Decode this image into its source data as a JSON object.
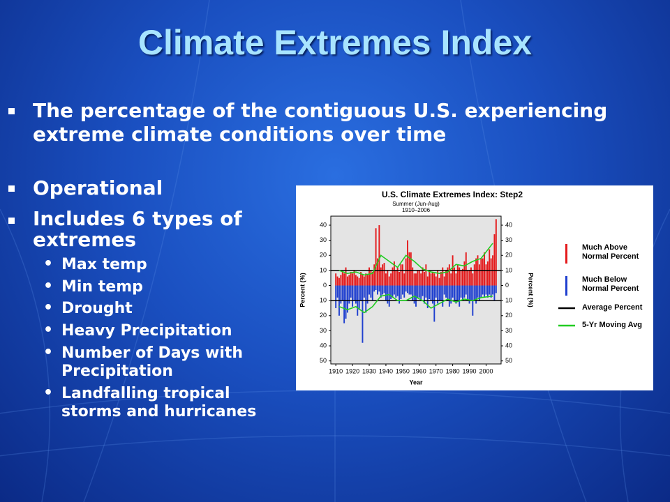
{
  "title": "Climate Extremes Index",
  "bullets": [
    {
      "text": "The percentage of the contiguous U.S. experiencing extreme climate conditions over time"
    },
    {
      "text": "Operational"
    },
    {
      "text": "Includes 6 types of extremes",
      "subitems": [
        "Max temp",
        "Min temp",
        "Drought",
        "Heavy Precipitation",
        "Number of Days with Precipitation",
        "Landfalling tropical storms and hurricanes"
      ]
    }
  ],
  "chart_data": {
    "type": "bar",
    "title": "U.S. Climate Extremes Index: Step2",
    "subtitle": "Summer (Jun-Aug)",
    "period": "1910–2006",
    "x_label": "Year",
    "y_label": "Percent (%)",
    "y2_label": "Percent (%)",
    "x": [
      1910,
      1911,
      1912,
      1913,
      1914,
      1915,
      1916,
      1917,
      1918,
      1919,
      1920,
      1921,
      1922,
      1923,
      1924,
      1925,
      1926,
      1927,
      1928,
      1929,
      1930,
      1931,
      1932,
      1933,
      1934,
      1935,
      1936,
      1937,
      1938,
      1939,
      1940,
      1941,
      1942,
      1943,
      1944,
      1945,
      1946,
      1947,
      1948,
      1949,
      1950,
      1951,
      1952,
      1953,
      1954,
      1955,
      1956,
      1957,
      1958,
      1959,
      1960,
      1961,
      1962,
      1963,
      1964,
      1965,
      1966,
      1967,
      1968,
      1969,
      1970,
      1971,
      1972,
      1973,
      1974,
      1975,
      1976,
      1977,
      1978,
      1979,
      1980,
      1981,
      1982,
      1983,
      1984,
      1985,
      1986,
      1987,
      1988,
      1989,
      1990,
      1991,
      1992,
      1993,
      1994,
      1995,
      1996,
      1997,
      1998,
      1999,
      2000,
      2001,
      2002,
      2003,
      2004,
      2005,
      2006
    ],
    "series": [
      {
        "name": "Much Above Normal Percent",
        "color": "#e41a1c",
        "values": [
          8,
          6,
          5,
          7,
          9,
          8,
          12,
          6,
          7,
          9,
          8,
          10,
          7,
          6,
          5,
          9,
          7,
          6,
          8,
          7,
          12,
          10,
          9,
          14,
          38,
          18,
          40,
          12,
          14,
          15,
          8,
          10,
          6,
          8,
          12,
          16,
          10,
          12,
          9,
          14,
          14,
          8,
          18,
          30,
          22,
          22,
          12,
          8,
          8,
          10,
          10,
          8,
          12,
          9,
          14,
          6,
          10,
          8,
          9,
          8,
          6,
          10,
          5,
          9,
          12,
          6,
          10,
          12,
          14,
          8,
          20,
          12,
          8,
          14,
          12,
          10,
          11,
          16,
          22,
          10,
          10,
          12,
          8,
          14,
          18,
          20,
          14,
          18,
          18,
          22,
          14,
          16,
          24,
          18,
          20,
          34,
          44
        ]
      },
      {
        "name": "Much Below Normal Percent",
        "color": "#1f3fcf",
        "values": [
          -15,
          -8,
          -20,
          -12,
          -10,
          -25,
          -22,
          -18,
          -12,
          -8,
          -14,
          -10,
          -12,
          -20,
          -16,
          -10,
          -38,
          -8,
          -18,
          -12,
          -6,
          -8,
          -10,
          -4,
          -3,
          -6,
          -4,
          -8,
          -6,
          -5,
          -10,
          -12,
          -14,
          -9,
          -8,
          -6,
          -8,
          -7,
          -12,
          -9,
          -6,
          -8,
          -4,
          -5,
          -6,
          -6,
          -10,
          -12,
          -14,
          -8,
          -8,
          -10,
          -7,
          -12,
          -8,
          -15,
          -9,
          -10,
          -12,
          -24,
          -8,
          -12,
          -10,
          -10,
          -14,
          -6,
          -8,
          -10,
          -14,
          -12,
          -8,
          -10,
          -12,
          -10,
          -14,
          -8,
          -10,
          -8,
          -6,
          -10,
          -12,
          -10,
          -20,
          -10,
          -12,
          -8,
          -10,
          -8,
          -6,
          -8,
          -6,
          -8,
          -6,
          -8,
          -6,
          -10,
          -5
        ]
      }
    ],
    "average": {
      "name": "Average Percent",
      "color": "#000000",
      "values": [
        10,
        -10
      ]
    },
    "moving_average": {
      "name": "5-Yr Moving Avg",
      "color": "#22cc22",
      "lines": [
        {
          "x": [
            1912,
            1917,
            1922,
            1927,
            1932,
            1937,
            1942,
            1947,
            1952,
            1957,
            1962,
            1967,
            1972,
            1977,
            1982,
            1987,
            1992,
            1997,
            2004
          ],
          "values": [
            10,
            8,
            9,
            7,
            8,
            20,
            16,
            12,
            20,
            16,
            11,
            9,
            8,
            9,
            14,
            13,
            16,
            18,
            28
          ]
        },
        {
          "x": [
            1912,
            1917,
            1922,
            1927,
            1932,
            1937,
            1942,
            1947,
            1952,
            1957,
            1962,
            1967,
            1972,
            1977,
            1982,
            1987,
            1992,
            1997,
            2004
          ],
          "values": [
            -14,
            -16,
            -14,
            -18,
            -14,
            -7,
            -6,
            -10,
            -10,
            -7,
            -10,
            -15,
            -12,
            -9,
            -11,
            -9,
            -10,
            -8,
            -7
          ]
        }
      ]
    },
    "xlim": [
      1907,
      2009
    ],
    "xticks": [
      1910,
      1920,
      1930,
      1940,
      1950,
      1960,
      1970,
      1980,
      1990,
      2000
    ],
    "ylim": [
      -52,
      46
    ],
    "yticks": [
      40,
      30,
      20,
      10,
      0,
      {
        "value": -10,
        "label": "10"
      },
      {
        "value": -20,
        "label": "20"
      },
      {
        "value": -30,
        "label": "30"
      },
      {
        "value": -40,
        "label": "40"
      },
      {
        "value": -50,
        "label": "50"
      }
    ]
  }
}
